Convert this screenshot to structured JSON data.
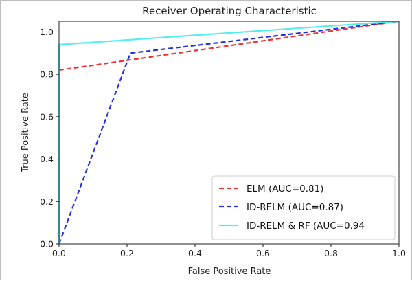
{
  "chart_data": {
    "type": "line",
    "title": "Receiver Operating Characteristic",
    "xlabel": "False Positive Rate",
    "ylabel": "True Positive Rate",
    "xlim": [
      0.0,
      1.0
    ],
    "ylim": [
      0.0,
      1.05
    ],
    "xticks": [
      "0.0",
      "0.2",
      "0.4",
      "0.6",
      "0.8",
      "1.0"
    ],
    "yticks": [
      "0.0",
      "0.2",
      "0.4",
      "0.6",
      "0.8",
      "1.0"
    ],
    "grid": false,
    "legend_position": "lower-right",
    "series": [
      {
        "name": "ELM (AUC=0.81)",
        "color": "#ee3333",
        "style": "dashed",
        "x": [
          0.0,
          0.0,
          1.0
        ],
        "y": [
          0.0,
          0.82,
          1.05
        ]
      },
      {
        "name": "ID-RELM (AUC=0.87)",
        "color": "#2233dd",
        "style": "dashed",
        "x": [
          0.0,
          0.21,
          1.0
        ],
        "y": [
          0.0,
          0.9,
          1.05
        ]
      },
      {
        "name": "ID-RELM & RF (AUC=0.94",
        "color": "#55eeee",
        "style": "solid",
        "x": [
          0.0,
          0.0,
          1.0
        ],
        "y": [
          0.0,
          0.94,
          1.05
        ]
      }
    ]
  }
}
